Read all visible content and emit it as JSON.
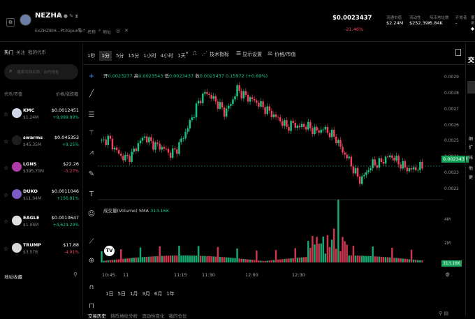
{
  "header": {
    "token_name": "NEZHA",
    "address": "ExZHZ8tH...Pt3Gpump",
    "name_label": "名称",
    "addr_label": "地址",
    "price": "$0.0023437",
    "change": "-21.46%",
    "stats": [
      {
        "k": "流通市值",
        "v": "$2.24M"
      },
      {
        "k": "流动性",
        "v": "$252.39K"
      },
      {
        "k": "持币地址数",
        "v": "5.84K"
      },
      {
        "k": "开发者",
        "v": "-"
      },
      {
        "k": "捆绑",
        "v": "◆"
      }
    ]
  },
  "sidebar": {
    "tabs": [
      "热门",
      "关注",
      "我的代币"
    ],
    "search_placeholder": "搜索币种名称、合约地址",
    "col_left": "代币/市值",
    "col_right": "价格/涨跌幅",
    "items": [
      {
        "name": "KMC",
        "mcap": "$1.24M",
        "price": "$0.0012451",
        "change": "+9,999.99%",
        "dir": "up",
        "color": "#cfd7e6"
      },
      {
        "name": "swarms",
        "mcap": "$45.35M",
        "price": "$0.045353",
        "change": "+9.25%",
        "dir": "up",
        "color": "#1d1d1d"
      },
      {
        "name": "LGNS",
        "mcap": "$395.70M",
        "price": "$22.26",
        "change": "-5.27%",
        "dir": "down",
        "color": "#b03aa8"
      },
      {
        "name": "DUKO",
        "mcap": "$11.04M",
        "price": "$0.0011046",
        "change": "+156.81%",
        "dir": "up",
        "color": "#7c5cc4"
      },
      {
        "name": "EAGLE",
        "mcap": "$1.06M",
        "price": "$0.0010647",
        "change": "+4,624.29%",
        "dir": "up",
        "color": "#e2e2e2"
      },
      {
        "name": "TRUMP",
        "mcap": "$3.57B",
        "price": "$17.88",
        "change": "-4.91%",
        "dir": "down",
        "color": "#d9d9d9"
      }
    ],
    "bottom": "地址收藏"
  },
  "toolbar": {
    "intervals": [
      "1秒",
      "1分",
      "5分",
      "15分",
      "1小时",
      "4小时",
      "1天"
    ],
    "active": "1分",
    "indicators": "技术指标",
    "display": "显示设置",
    "price_toggle": "价格/市值"
  },
  "ohlc": {
    "o_label": "开",
    "o": "0.0023277",
    "h_label": "高",
    "h": "0.0023543",
    "l_label": "低",
    "l": "0.0023437",
    "c_label": "收",
    "c": "0.0023437",
    "chg": "0.15972 (+0.69%)"
  },
  "volume_label": "成交量(Volume) SMA",
  "volume_value": "313.16K",
  "volume_axis": [
    "4M",
    "2M"
  ],
  "volume_current": "313.16K",
  "price_axis": [
    "0.0029",
    "0.0028",
    "0.0027",
    "0.0026",
    "0.0025",
    "0.0024",
    "0.0023",
    "0.0022"
  ],
  "current_price_label": "0.0023437",
  "time_axis": [
    "10:45",
    "11",
    "11:15",
    "11:30",
    "12:00",
    "12:30"
  ],
  "ranges": [
    "1日",
    "5日",
    "1月",
    "3月",
    "6月",
    "1年"
  ],
  "bottom_tabs": [
    "交易历史",
    "持币地址分析",
    "流动性变化",
    "我的仓位"
  ],
  "right_panel": {
    "title": "交",
    "lines": [
      "细",
      "扩",
      "钱",
      "他",
      "更"
    ]
  },
  "colors": {
    "up": "#16c784",
    "down": "#f0405a",
    "bg": "#000000"
  },
  "chart_data": {
    "type": "candlestick",
    "ylim": [
      0.00215,
      0.00295
    ],
    "close_path": [
      0.00249,
      0.00252,
      0.00246,
      0.00241,
      0.00239,
      0.00242,
      0.00249,
      0.00253,
      0.00249,
      0.00247,
      0.00246,
      0.00242,
      0.00244,
      0.00251,
      0.00259,
      0.00268,
      0.00277,
      0.00281,
      0.00277,
      0.00273,
      0.00268,
      0.00274,
      0.00283,
      0.00279,
      0.00277,
      0.00275,
      0.00272,
      0.00269,
      0.00266,
      0.00263,
      0.00259,
      0.00261,
      0.00259,
      0.0026,
      0.00258,
      0.00256,
      0.00258,
      0.00255,
      0.00252,
      0.00244,
      0.00239,
      0.00231,
      0.00225,
      0.00231,
      0.00236,
      0.00236,
      0.00239,
      0.00241,
      0.00237,
      0.00234,
      0.00232,
      0.00233,
      0.00234
    ]
  }
}
